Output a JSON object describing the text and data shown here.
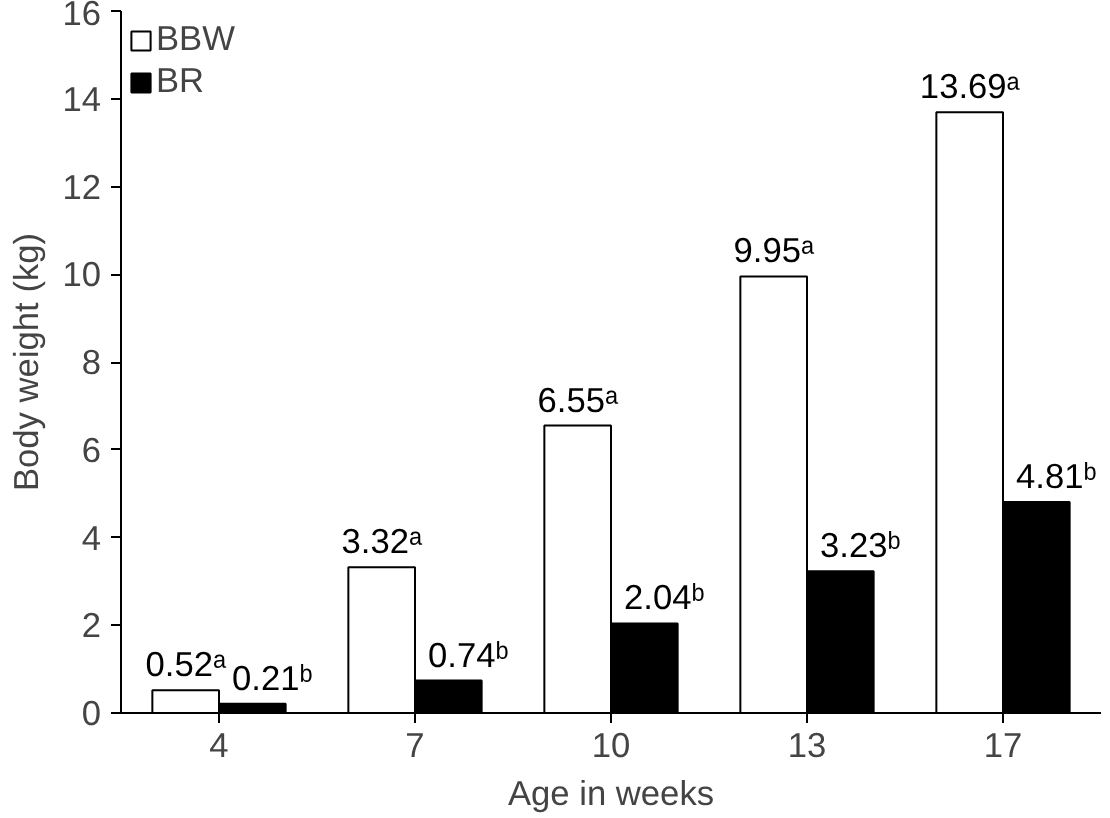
{
  "chart_data": {
    "type": "bar",
    "xlabel": "Age in weeks",
    "ylabel": "Body weight (kg)",
    "categories": [
      "4",
      "7",
      "10",
      "13",
      "17"
    ],
    "series": [
      {
        "name": "BBW",
        "color": "#ffffff",
        "values": [
          0.52,
          3.32,
          6.55,
          9.95,
          13.69
        ],
        "value_labels": [
          "0.52ᵃ",
          "3.32ᵃ",
          "6.55ᵃ",
          "9.95ᵃ",
          "13.69ᵃ"
        ]
      },
      {
        "name": "BR",
        "color": "#000000",
        "values": [
          0.21,
          0.74,
          2.04,
          3.23,
          4.81
        ],
        "value_labels": [
          "0.21ᵇ",
          "0.74ᵇ",
          "2.04ᵇ",
          "3.23ᵇ",
          "4.81ᵇ"
        ]
      }
    ],
    "ylim": [
      0,
      16
    ],
    "yticks": [
      0,
      2,
      4,
      6,
      8,
      10,
      12,
      14,
      16
    ],
    "grid": false,
    "legend": "top left"
  }
}
